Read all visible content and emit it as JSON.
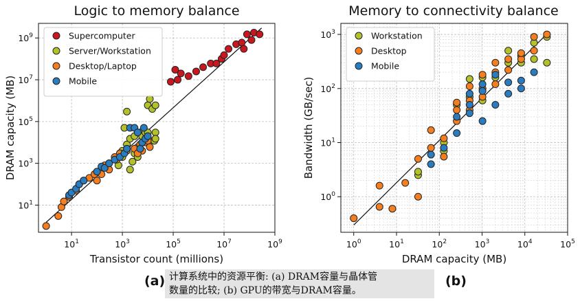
{
  "figure": {
    "panel_a_label": "(a)",
    "panel_b_label": "(b)",
    "caption_line1": "计算系统中的资源平衡: (a) DRAM容量与晶体管",
    "caption_line2": "数量的比较; (b) GPU的带宽与DRAM容量。"
  },
  "chart_data": [
    {
      "type": "scatter",
      "title": "Logic to memory balance",
      "xlabel": "Transistor count (millions)",
      "ylabel": "DRAM capacity (MB)",
      "xscale": "log",
      "yscale": "log",
      "xlim": [
        0.5,
        1000000000
      ],
      "ylim": [
        0.5,
        5000000000
      ],
      "xticks": [
        10,
        1000,
        100000,
        10000000,
        1000000000
      ],
      "xtick_labels": [
        "10^1",
        "10^3",
        "10^5",
        "10^7",
        "10^9"
      ],
      "yticks": [
        10,
        1000,
        100000,
        10000000,
        1000000000
      ],
      "ytick_labels": [
        "10^1",
        "10^3",
        "10^5",
        "10^7",
        "10^9"
      ],
      "grid": true,
      "legend_position": "top-left",
      "trend_line": [
        [
          1,
          1.5
        ],
        [
          300000000,
          3000000000
        ]
      ],
      "series": [
        {
          "name": "Supercomputer",
          "color": "#c8171e",
          "points": [
            [
              80000,
              8000000
            ],
            [
              120000,
              30000000
            ],
            [
              200000,
              20000000
            ],
            [
              400000,
              15000000
            ],
            [
              800000,
              25000000
            ],
            [
              1500000,
              40000000
            ],
            [
              3000000,
              60000000
            ],
            [
              5000000,
              60000000
            ],
            [
              8000000,
              100000000
            ],
            [
              10000000,
              150000000
            ],
            [
              15000000,
              300000000
            ],
            [
              30000000,
              500000000
            ],
            [
              50000000,
              600000000
            ],
            [
              60000000,
              300000000
            ],
            [
              80000000,
              1500000000
            ],
            [
              120000000,
              800000000
            ],
            [
              150000000,
              1800000000
            ],
            [
              250000000,
              1500000000
            ],
            [
              150000,
              10000000
            ]
          ]
        },
        {
          "name": "Server/Workstation",
          "color": "#b3c22b",
          "points": [
            [
              1500,
              300000
            ],
            [
              1200,
              50000
            ],
            [
              1000,
              4000
            ],
            [
              1500,
              8000
            ],
            [
              2000,
              15000
            ],
            [
              3000,
              20000
            ],
            [
              3000,
              3000
            ],
            [
              4000,
              6000
            ],
            [
              5000,
              30000
            ],
            [
              6000,
              20000
            ],
            [
              8000,
              30000
            ],
            [
              10000,
              30000
            ],
            [
              10000,
              600000
            ],
            [
              12000,
              1200000
            ],
            [
              15000,
              400000
            ],
            [
              20000,
              600000
            ],
            [
              20000,
              30000
            ],
            [
              12000,
              12000
            ],
            [
              18000,
              12000
            ],
            [
              20000,
              15000
            ],
            [
              700,
              800
            ],
            [
              1000,
              2000
            ],
            [
              2500,
              1200
            ],
            [
              4000,
              2000
            ],
            [
              2000,
              500
            ],
            [
              800,
              3000
            ]
          ]
        },
        {
          "name": "Desktop/Laptop",
          "color": "#f57f20",
          "points": [
            [
              1,
              1
            ],
            [
              3,
              3
            ],
            [
              4,
              8
            ],
            [
              5,
              15
            ],
            [
              8,
              25
            ],
            [
              15,
              50
            ],
            [
              20,
              100
            ],
            [
              30,
              150
            ],
            [
              50,
              200
            ],
            [
              80,
              300
            ],
            [
              100,
              150
            ],
            [
              150,
              300
            ],
            [
              200,
              800
            ],
            [
              300,
              1000
            ],
            [
              500,
              2000
            ],
            [
              800,
              3000
            ],
            [
              1500,
              4000
            ],
            [
              3000,
              5000
            ],
            [
              5000,
              8000
            ],
            [
              8000,
              10000
            ],
            [
              10000,
              12000
            ],
            [
              12000,
              6000
            ],
            [
              6000,
              4000
            ],
            [
              4000,
              3000
            ],
            [
              300,
              500
            ],
            [
              600,
              1500
            ]
          ]
        },
        {
          "name": "Mobile",
          "color": "#2b7bbf",
          "points": [
            [
              8,
              30
            ],
            [
              10,
              40
            ],
            [
              15,
              60
            ],
            [
              20,
              100
            ],
            [
              30,
              150
            ],
            [
              100,
              400
            ],
            [
              150,
              700
            ],
            [
              200,
              600
            ],
            [
              300,
              1000
            ],
            [
              500,
              1500
            ],
            [
              800,
              2000
            ],
            [
              1200,
              3000
            ],
            [
              1500,
              5000
            ],
            [
              2000,
              50000
            ],
            [
              3000,
              50000
            ],
            [
              5000,
              5000
            ],
            [
              6000,
              10000
            ],
            [
              8000,
              15000
            ],
            [
              10000,
              20000
            ],
            [
              4000,
              30000
            ],
            [
              7000,
              50000
            ]
          ]
        }
      ]
    },
    {
      "type": "scatter",
      "title": "Memory to connectivity balance",
      "xlabel": "DRAM capacity (MB)",
      "ylabel": "Bandwidth (GB/sec)",
      "xscale": "log",
      "yscale": "log",
      "xlim": [
        0.5,
        100000
      ],
      "ylim": [
        0.22,
        1600
      ],
      "xticks": [
        1,
        10,
        100,
        1000,
        10000,
        100000
      ],
      "xtick_labels": [
        "10^0",
        "10^1",
        "10^2",
        "10^3",
        "10^4",
        "10^5"
      ],
      "yticks": [
        1,
        10,
        100,
        1000
      ],
      "ytick_labels": [
        "10^0",
        "10^1",
        "10^2",
        "10^3"
      ],
      "grid": true,
      "legend_position": "top-left",
      "trend_line": [
        [
          1,
          0.3
        ],
        [
          32000,
          1000
        ]
      ],
      "series": [
        {
          "name": "Workstation",
          "color": "#b3c22b",
          "points": [
            [
              32,
              2.5
            ],
            [
              32,
              2.9
            ],
            [
              128,
              7
            ],
            [
              128,
              10
            ],
            [
              256,
              50
            ],
            [
              512,
              70
            ],
            [
              1024,
              60
            ],
            [
              2048,
              160
            ],
            [
              4096,
              300
            ],
            [
              4096,
              500
            ],
            [
              8192,
              300
            ],
            [
              8192,
              400
            ],
            [
              16384,
              350
            ],
            [
              16384,
              700
            ],
            [
              32768,
              900
            ],
            [
              32768,
              300
            ],
            [
              1024,
              160
            ],
            [
              512,
              150
            ]
          ]
        },
        {
          "name": "Desktop",
          "color": "#f57f20",
          "points": [
            [
              1,
              0.4
            ],
            [
              4,
              1.6
            ],
            [
              4,
              0.65
            ],
            [
              8,
              0.6
            ],
            [
              16,
              1.8
            ],
            [
              32,
              1.0
            ],
            [
              32,
              5
            ],
            [
              64,
              8
            ],
            [
              64,
              17
            ],
            [
              128,
              5.5
            ],
            [
              128,
              12
            ],
            [
              256,
              25
            ],
            [
              256,
              40
            ],
            [
              512,
              60
            ],
            [
              512,
              110
            ],
            [
              1024,
              100
            ],
            [
              1024,
              180
            ],
            [
              2048,
              200
            ],
            [
              2048,
              300
            ],
            [
              4096,
              350
            ],
            [
              8192,
              350
            ],
            [
              8192,
              450
            ],
            [
              16384,
              900
            ],
            [
              16384,
              500
            ],
            [
              32768,
              1000
            ],
            [
              512,
              40
            ],
            [
              256,
              55
            ],
            [
              1024,
              70
            ],
            [
              2048,
              120
            ],
            [
              4096,
              220
            ]
          ]
        },
        {
          "name": "Mobile",
          "color": "#2b7bbf",
          "points": [
            [
              64,
              4
            ],
            [
              64,
              6
            ],
            [
              128,
              8
            ],
            [
              256,
              15
            ],
            [
              256,
              30
            ],
            [
              512,
              35
            ],
            [
              512,
              80
            ],
            [
              1024,
              25
            ],
            [
              1024,
              120
            ],
            [
              2048,
              50
            ],
            [
              2048,
              180
            ],
            [
              4096,
              80
            ],
            [
              4096,
              130
            ],
            [
              8192,
              100
            ],
            [
              8192,
              140
            ],
            [
              16384,
              200
            ],
            [
              1024,
              90
            ],
            [
              512,
              50
            ]
          ]
        }
      ]
    }
  ]
}
